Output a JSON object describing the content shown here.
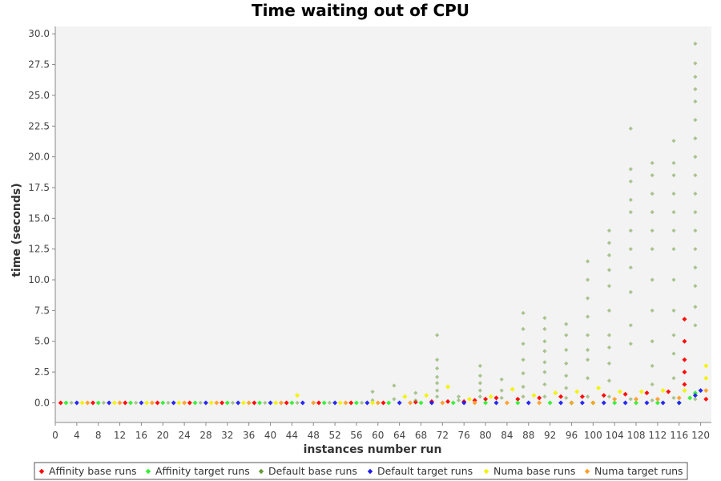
{
  "chart_data": {
    "type": "scatter",
    "title": "Time waiting out of CPU",
    "xlabel": "instances number run",
    "ylabel": "time (seconds)",
    "xlim": [
      0,
      122
    ],
    "ylim": [
      -1.6,
      30.6
    ],
    "x_ticks": [
      0,
      4,
      8,
      12,
      16,
      20,
      24,
      28,
      32,
      36,
      40,
      44,
      48,
      52,
      56,
      60,
      64,
      68,
      72,
      76,
      80,
      84,
      88,
      92,
      96,
      100,
      104,
      108,
      112,
      116,
      120
    ],
    "y_ticks": [
      0.0,
      2.5,
      5.0,
      7.5,
      10.0,
      12.5,
      15.0,
      17.5,
      20.0,
      22.5,
      25.0,
      27.5,
      30.0
    ],
    "grid": false,
    "legend_position": "bottom",
    "colors": {
      "affinity_base": "#ff0000",
      "affinity_target": "#33ee33",
      "default_base": "#6a9a3a",
      "default_target": "#1e1eee",
      "numa_base": "#f2f200",
      "numa_target": "#ff9e2a"
    },
    "series": [
      {
        "name": "Affinity base runs",
        "key": "affinity_base",
        "points": [
          [
            1,
            0
          ],
          [
            7,
            0
          ],
          [
            13,
            0
          ],
          [
            19,
            0
          ],
          [
            25,
            0
          ],
          [
            31,
            0
          ],
          [
            37,
            0
          ],
          [
            43,
            0
          ],
          [
            49,
            0
          ],
          [
            55,
            0
          ],
          [
            61,
            0
          ],
          [
            67,
            0.05
          ],
          [
            70,
            0.1
          ],
          [
            73,
            0.1
          ],
          [
            76,
            0.1
          ],
          [
            78,
            0.2
          ],
          [
            80,
            0.3
          ],
          [
            82,
            0.4
          ],
          [
            86,
            0.3
          ],
          [
            90,
            0.4
          ],
          [
            94,
            0.5
          ],
          [
            98,
            0.5
          ],
          [
            102,
            0.6
          ],
          [
            106,
            0.7
          ],
          [
            110,
            0.8
          ],
          [
            114,
            0.9
          ],
          [
            117,
            1.5
          ],
          [
            117,
            2.5
          ],
          [
            117,
            3.5
          ],
          [
            117,
            5.0
          ],
          [
            117,
            6.8
          ],
          [
            121,
            0.3
          ]
        ]
      },
      {
        "name": "Affinity target runs",
        "key": "affinity_target",
        "points": [
          [
            2,
            0
          ],
          [
            8,
            0
          ],
          [
            14,
            0
          ],
          [
            20,
            0
          ],
          [
            26,
            0
          ],
          [
            32,
            0
          ],
          [
            38,
            0
          ],
          [
            44,
            0
          ],
          [
            50,
            0
          ],
          [
            56,
            0
          ],
          [
            62,
            0
          ],
          [
            68,
            0
          ],
          [
            74,
            0
          ],
          [
            80,
            0
          ],
          [
            86,
            0
          ],
          [
            92,
            0
          ],
          [
            96,
            0
          ],
          [
            100,
            0
          ],
          [
            104,
            0
          ],
          [
            108,
            0
          ],
          [
            112,
            0
          ],
          [
            116,
            0
          ],
          [
            118,
            0.4
          ],
          [
            119,
            0.8
          ]
        ]
      },
      {
        "name": "Default base runs",
        "key": "default_base",
        "points": [
          [
            3,
            0
          ],
          [
            9,
            0
          ],
          [
            15,
            0
          ],
          [
            21,
            0
          ],
          [
            27,
            0
          ],
          [
            33,
            0
          ],
          [
            39,
            0
          ],
          [
            45,
            0
          ],
          [
            51,
            0
          ],
          [
            57,
            0
          ],
          [
            59,
            0.2
          ],
          [
            59,
            0.9
          ],
          [
            63,
            0.3
          ],
          [
            63,
            1.4
          ],
          [
            67,
            0.2
          ],
          [
            67,
            0.8
          ],
          [
            71,
            0.5
          ],
          [
            71,
            1.0
          ],
          [
            71,
            1.6
          ],
          [
            71,
            2.1
          ],
          [
            71,
            2.8
          ],
          [
            71,
            3.5
          ],
          [
            71,
            5.5
          ],
          [
            75,
            0.2
          ],
          [
            75,
            0.5
          ],
          [
            79,
            0.5
          ],
          [
            79,
            1.0
          ],
          [
            79,
            1.6
          ],
          [
            79,
            2.2
          ],
          [
            79,
            3.0
          ],
          [
            83,
            0.4
          ],
          [
            83,
            1.0
          ],
          [
            83,
            1.9
          ],
          [
            87,
            0.5
          ],
          [
            87,
            1.3
          ],
          [
            87,
            2.4
          ],
          [
            87,
            3.5
          ],
          [
            87,
            4.8
          ],
          [
            87,
            6.0
          ],
          [
            87,
            7.3
          ],
          [
            91,
            0.5
          ],
          [
            91,
            1.5
          ],
          [
            91,
            2.5
          ],
          [
            91,
            3.3
          ],
          [
            91,
            4.2
          ],
          [
            91,
            5.0
          ],
          [
            91,
            6.0
          ],
          [
            91,
            6.9
          ],
          [
            95,
            0.4
          ],
          [
            95,
            1.2
          ],
          [
            95,
            2.2
          ],
          [
            95,
            3.2
          ],
          [
            95,
            4.3
          ],
          [
            95,
            5.5
          ],
          [
            95,
            6.4
          ],
          [
            99,
            0.5
          ],
          [
            99,
            2.0
          ],
          [
            99,
            3.5
          ],
          [
            99,
            4.3
          ],
          [
            99,
            5.5
          ],
          [
            99,
            7.0
          ],
          [
            99,
            8.5
          ],
          [
            99,
            10.0
          ],
          [
            99,
            11.5
          ],
          [
            103,
            0.5
          ],
          [
            103,
            1.8
          ],
          [
            103,
            3.2
          ],
          [
            103,
            4.5
          ],
          [
            103,
            5.5
          ],
          [
            103,
            7.5
          ],
          [
            103,
            9.5
          ],
          [
            103,
            10.8
          ],
          [
            103,
            12.0
          ],
          [
            103,
            13.0
          ],
          [
            103,
            14.0
          ],
          [
            107,
            0.3
          ],
          [
            107,
            4.8
          ],
          [
            107,
            6.3
          ],
          [
            107,
            9.0
          ],
          [
            107,
            11.0
          ],
          [
            107,
            12.5
          ],
          [
            107,
            14.0
          ],
          [
            107,
            15.5
          ],
          [
            107,
            16.5
          ],
          [
            107,
            18.0
          ],
          [
            107,
            19.0
          ],
          [
            107,
            22.3
          ],
          [
            111,
            0.2
          ],
          [
            111,
            1.5
          ],
          [
            111,
            3.0
          ],
          [
            111,
            5.0
          ],
          [
            111,
            7.5
          ],
          [
            111,
            10.0
          ],
          [
            111,
            12.5
          ],
          [
            111,
            14.0
          ],
          [
            111,
            15.5
          ],
          [
            111,
            17.0
          ],
          [
            111,
            18.5
          ],
          [
            111,
            19.5
          ],
          [
            115,
            0.4
          ],
          [
            115,
            2.0
          ],
          [
            115,
            4.0
          ],
          [
            115,
            5.5
          ],
          [
            115,
            7.5
          ],
          [
            115,
            10.0
          ],
          [
            115,
            12.5
          ],
          [
            115,
            14.0
          ],
          [
            115,
            15.5
          ],
          [
            115,
            17.0
          ],
          [
            115,
            18.5
          ],
          [
            115,
            19.5
          ],
          [
            115,
            21.3
          ],
          [
            119,
            0.3
          ],
          [
            119,
            6.3
          ],
          [
            119,
            7.8
          ],
          [
            119,
            9.5
          ],
          [
            119,
            11.0
          ],
          [
            119,
            12.5
          ],
          [
            119,
            14.0
          ],
          [
            119,
            15.5
          ],
          [
            119,
            17.0
          ],
          [
            119,
            18.5
          ],
          [
            119,
            20.0
          ],
          [
            119,
            21.5
          ],
          [
            119,
            23.0
          ],
          [
            119,
            24.5
          ],
          [
            119,
            25.5
          ],
          [
            119,
            26.5
          ],
          [
            119,
            27.6
          ],
          [
            119,
            29.2
          ]
        ]
      },
      {
        "name": "Default target runs",
        "key": "default_target",
        "points": [
          [
            4,
            0
          ],
          [
            10,
            0
          ],
          [
            16,
            0
          ],
          [
            22,
            0
          ],
          [
            28,
            0
          ],
          [
            34,
            0
          ],
          [
            40,
            0
          ],
          [
            46,
            0
          ],
          [
            52,
            0
          ],
          [
            58,
            0
          ],
          [
            64,
            0
          ],
          [
            70,
            0
          ],
          [
            76,
            0
          ],
          [
            82,
            0
          ],
          [
            88,
            0
          ],
          [
            94,
            0
          ],
          [
            98,
            0
          ],
          [
            102,
            0
          ],
          [
            106,
            0
          ],
          [
            110,
            0
          ],
          [
            113,
            0
          ],
          [
            116,
            0
          ],
          [
            119,
            0.6
          ],
          [
            120,
            1.0
          ]
        ]
      },
      {
        "name": "Numa base runs",
        "key": "numa_base",
        "points": [
          [
            5,
            0
          ],
          [
            11,
            0
          ],
          [
            17,
            0
          ],
          [
            23,
            0
          ],
          [
            29,
            0
          ],
          [
            35,
            0
          ],
          [
            41,
            0
          ],
          [
            45,
            0.6
          ],
          [
            53,
            0
          ],
          [
            59,
            0
          ],
          [
            65,
            0.5
          ],
          [
            69,
            0.6
          ],
          [
            73,
            1.3
          ],
          [
            77,
            0.3
          ],
          [
            81,
            0.5
          ],
          [
            85,
            1.1
          ],
          [
            89,
            0.6
          ],
          [
            93,
            0.8
          ],
          [
            97,
            0.9
          ],
          [
            101,
            1.2
          ],
          [
            105,
            0.9
          ],
          [
            109,
            0.9
          ],
          [
            113,
            1.0
          ],
          [
            117,
            1.0
          ],
          [
            121,
            2.0
          ],
          [
            121,
            3.0
          ]
        ]
      },
      {
        "name": "Numa target runs",
        "key": "numa_target",
        "points": [
          [
            6,
            0
          ],
          [
            12,
            0
          ],
          [
            18,
            0
          ],
          [
            24,
            0
          ],
          [
            30,
            0
          ],
          [
            36,
            0
          ],
          [
            42,
            0
          ],
          [
            48,
            0
          ],
          [
            54,
            0
          ],
          [
            60,
            0
          ],
          [
            66,
            0
          ],
          [
            72,
            0
          ],
          [
            78,
            0
          ],
          [
            84,
            0
          ],
          [
            90,
            0
          ],
          [
            96,
            0
          ],
          [
            100,
            0
          ],
          [
            104,
            0.3
          ],
          [
            108,
            0.3
          ],
          [
            112,
            0.3
          ],
          [
            116,
            0.4
          ],
          [
            121,
            1.0
          ]
        ]
      }
    ]
  }
}
